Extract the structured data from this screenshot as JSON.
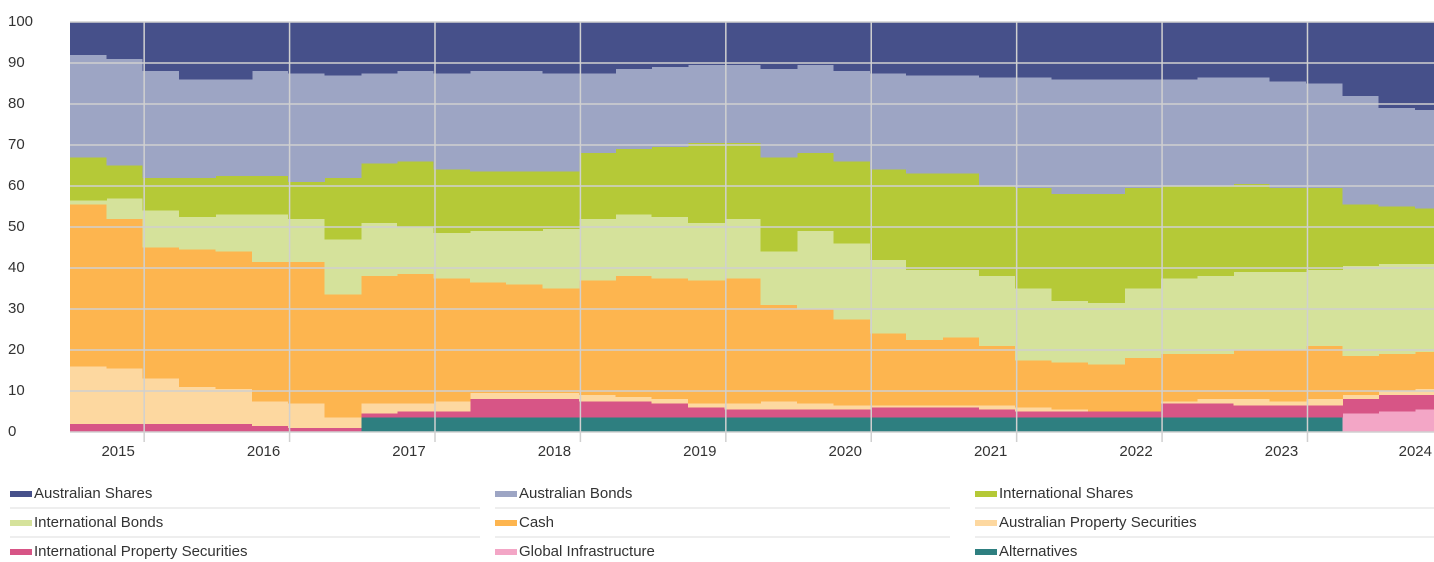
{
  "chart_data": {
    "type": "stacked_step_area",
    "x": [
      2014.69,
      2014.94,
      2015.19,
      2015.44,
      2015.69,
      2015.94,
      2016.19,
      2016.44,
      2016.69,
      2016.94,
      2017.19,
      2017.44,
      2017.69,
      2017.94,
      2018.19,
      2018.44,
      2018.69,
      2018.94,
      2019.19,
      2019.44,
      2019.69,
      2019.94,
      2020.19,
      2020.44,
      2020.69,
      2020.94,
      2021.19,
      2021.44,
      2021.69,
      2021.94,
      2022.19,
      2022.44,
      2022.69,
      2022.94,
      2023.19,
      2023.44,
      2023.69,
      2023.94
    ],
    "xlim": [
      2014.69,
      2024.07
    ],
    "xticks": [
      {
        "value": 2015.2,
        "label": "2015"
      },
      {
        "value": 2016.2,
        "label": "2016"
      },
      {
        "value": 2017.2,
        "label": "2017"
      },
      {
        "value": 2018.2,
        "label": "2018"
      },
      {
        "value": 2019.2,
        "label": "2019"
      },
      {
        "value": 2020.2,
        "label": "2020"
      },
      {
        "value": 2021.2,
        "label": "2021"
      },
      {
        "value": 2022.2,
        "label": "2022"
      },
      {
        "value": 2023.2,
        "label": "2023"
      },
      {
        "value": 2024.2,
        "label": "2024"
      }
    ],
    "ylim": [
      0,
      100
    ],
    "yticks": [
      0,
      10,
      20,
      30,
      40,
      50,
      60,
      70,
      80,
      90,
      100
    ],
    "grid": true,
    "legend": "bottom",
    "series": [
      {
        "name": "Australian Shares",
        "color": "#46508a",
        "values": [
          8,
          9,
          12,
          14,
          14,
          12,
          12.5,
          13,
          12.5,
          12,
          12.5,
          12,
          12,
          12.5,
          12.5,
          11.5,
          11,
          10.5,
          10.5,
          11.5,
          10.5,
          12,
          12.5,
          13,
          13,
          13.5,
          13.5,
          14,
          14,
          14,
          14,
          13.5,
          13.5,
          14.5,
          15,
          18,
          21,
          21.5
        ]
      },
      {
        "name": "Australian Bonds",
        "color": "#9da5c4",
        "values": [
          25,
          26,
          26,
          24,
          23.5,
          25.5,
          26.5,
          25,
          22,
          22,
          23.5,
          24.5,
          24.5,
          24,
          19.5,
          19.5,
          19.5,
          19,
          19,
          21.5,
          21.5,
          22,
          23.5,
          24,
          24,
          26.5,
          27,
          28,
          28,
          26.5,
          26,
          26.5,
          26,
          26,
          25.5,
          26.5,
          24,
          24
        ]
      },
      {
        "name": "International Shares",
        "color": "#b5c937",
        "values": [
          10.5,
          8,
          8,
          9.5,
          9.5,
          9.5,
          9,
          15,
          14.5,
          16,
          15.5,
          14.5,
          14.5,
          14,
          16,
          16,
          17,
          19.5,
          18.5,
          23,
          19,
          20,
          22,
          23.5,
          23.5,
          22,
          24.5,
          26,
          26.5,
          24.5,
          22.5,
          22,
          21.5,
          20.5,
          20,
          15,
          14,
          13.5
        ]
      },
      {
        "name": "International Bonds",
        "color": "#d5e29b",
        "values": [
          1,
          5,
          9,
          8,
          9,
          11.5,
          10.5,
          13.5,
          13,
          11.5,
          11,
          12.5,
          13,
          14.5,
          15,
          15,
          15,
          14,
          14.5,
          13,
          19,
          18.5,
          18,
          17,
          16.5,
          17,
          17.5,
          15,
          15,
          17,
          18.5,
          19,
          19,
          19,
          18.5,
          22,
          22,
          21.5
        ]
      },
      {
        "name": "Cash",
        "color": "#fdb54f",
        "values": [
          39.5,
          36.5,
          32,
          33.5,
          33.5,
          34,
          34.5,
          30,
          31,
          31.5,
          30,
          27,
          26.5,
          25.5,
          28,
          29.5,
          29.5,
          30,
          30.5,
          23.5,
          23,
          21,
          17.5,
          16,
          16.5,
          14.5,
          11.5,
          11.5,
          11.5,
          13,
          11.5,
          11,
          12,
          12.5,
          13,
          9.5,
          9,
          9
        ]
      },
      {
        "name": "Australian Property Securities",
        "color": "#fdd8a0",
        "values": [
          14,
          13.5,
          11,
          9,
          8.5,
          6,
          6,
          2.5,
          2.5,
          2,
          2.5,
          1.5,
          1.5,
          1.5,
          1.5,
          1,
          1,
          1,
          1.5,
          2,
          1.5,
          1,
          0.5,
          0.5,
          0.5,
          1,
          1,
          0.5,
          0,
          0,
          0.5,
          1,
          1.5,
          1,
          1.5,
          1,
          1,
          1.5
        ]
      },
      {
        "name": "International Property Securities",
        "color": "#d75586",
        "values": [
          2,
          2,
          2,
          2,
          2,
          1.5,
          1,
          1,
          1,
          1.5,
          1.5,
          4.5,
          4.5,
          4.5,
          4,
          4,
          3.5,
          2.5,
          2,
          2,
          2,
          2,
          2.5,
          2.5,
          2.5,
          2,
          1.5,
          1.5,
          1.5,
          1.5,
          3.5,
          3.5,
          3,
          3,
          3,
          3.5,
          4,
          3.5
        ]
      },
      {
        "name": "Global Infrastructure",
        "color": "#f3a6c6",
        "values": [
          0,
          0,
          0,
          0,
          0,
          0,
          0,
          0,
          0,
          0,
          0,
          0,
          0,
          0,
          0,
          0,
          0,
          0,
          0,
          0,
          0,
          0,
          0,
          0,
          0,
          0,
          0,
          0,
          0,
          0,
          0,
          0,
          0,
          0,
          0,
          4.5,
          5,
          5.5
        ]
      },
      {
        "name": "Alternatives",
        "color": "#2e7f80",
        "values": [
          0,
          0,
          0,
          0,
          0,
          0,
          0,
          0,
          3.5,
          3.5,
          3.5,
          3.5,
          3.5,
          3.5,
          3.5,
          3.5,
          3.5,
          3.5,
          3.5,
          3.5,
          3.5,
          3.5,
          3.5,
          3.5,
          3.5,
          3.5,
          3.5,
          3.5,
          3.5,
          3.5,
          3.5,
          3.5,
          3.5,
          3.5,
          3.5,
          0,
          0,
          0
        ]
      }
    ]
  }
}
